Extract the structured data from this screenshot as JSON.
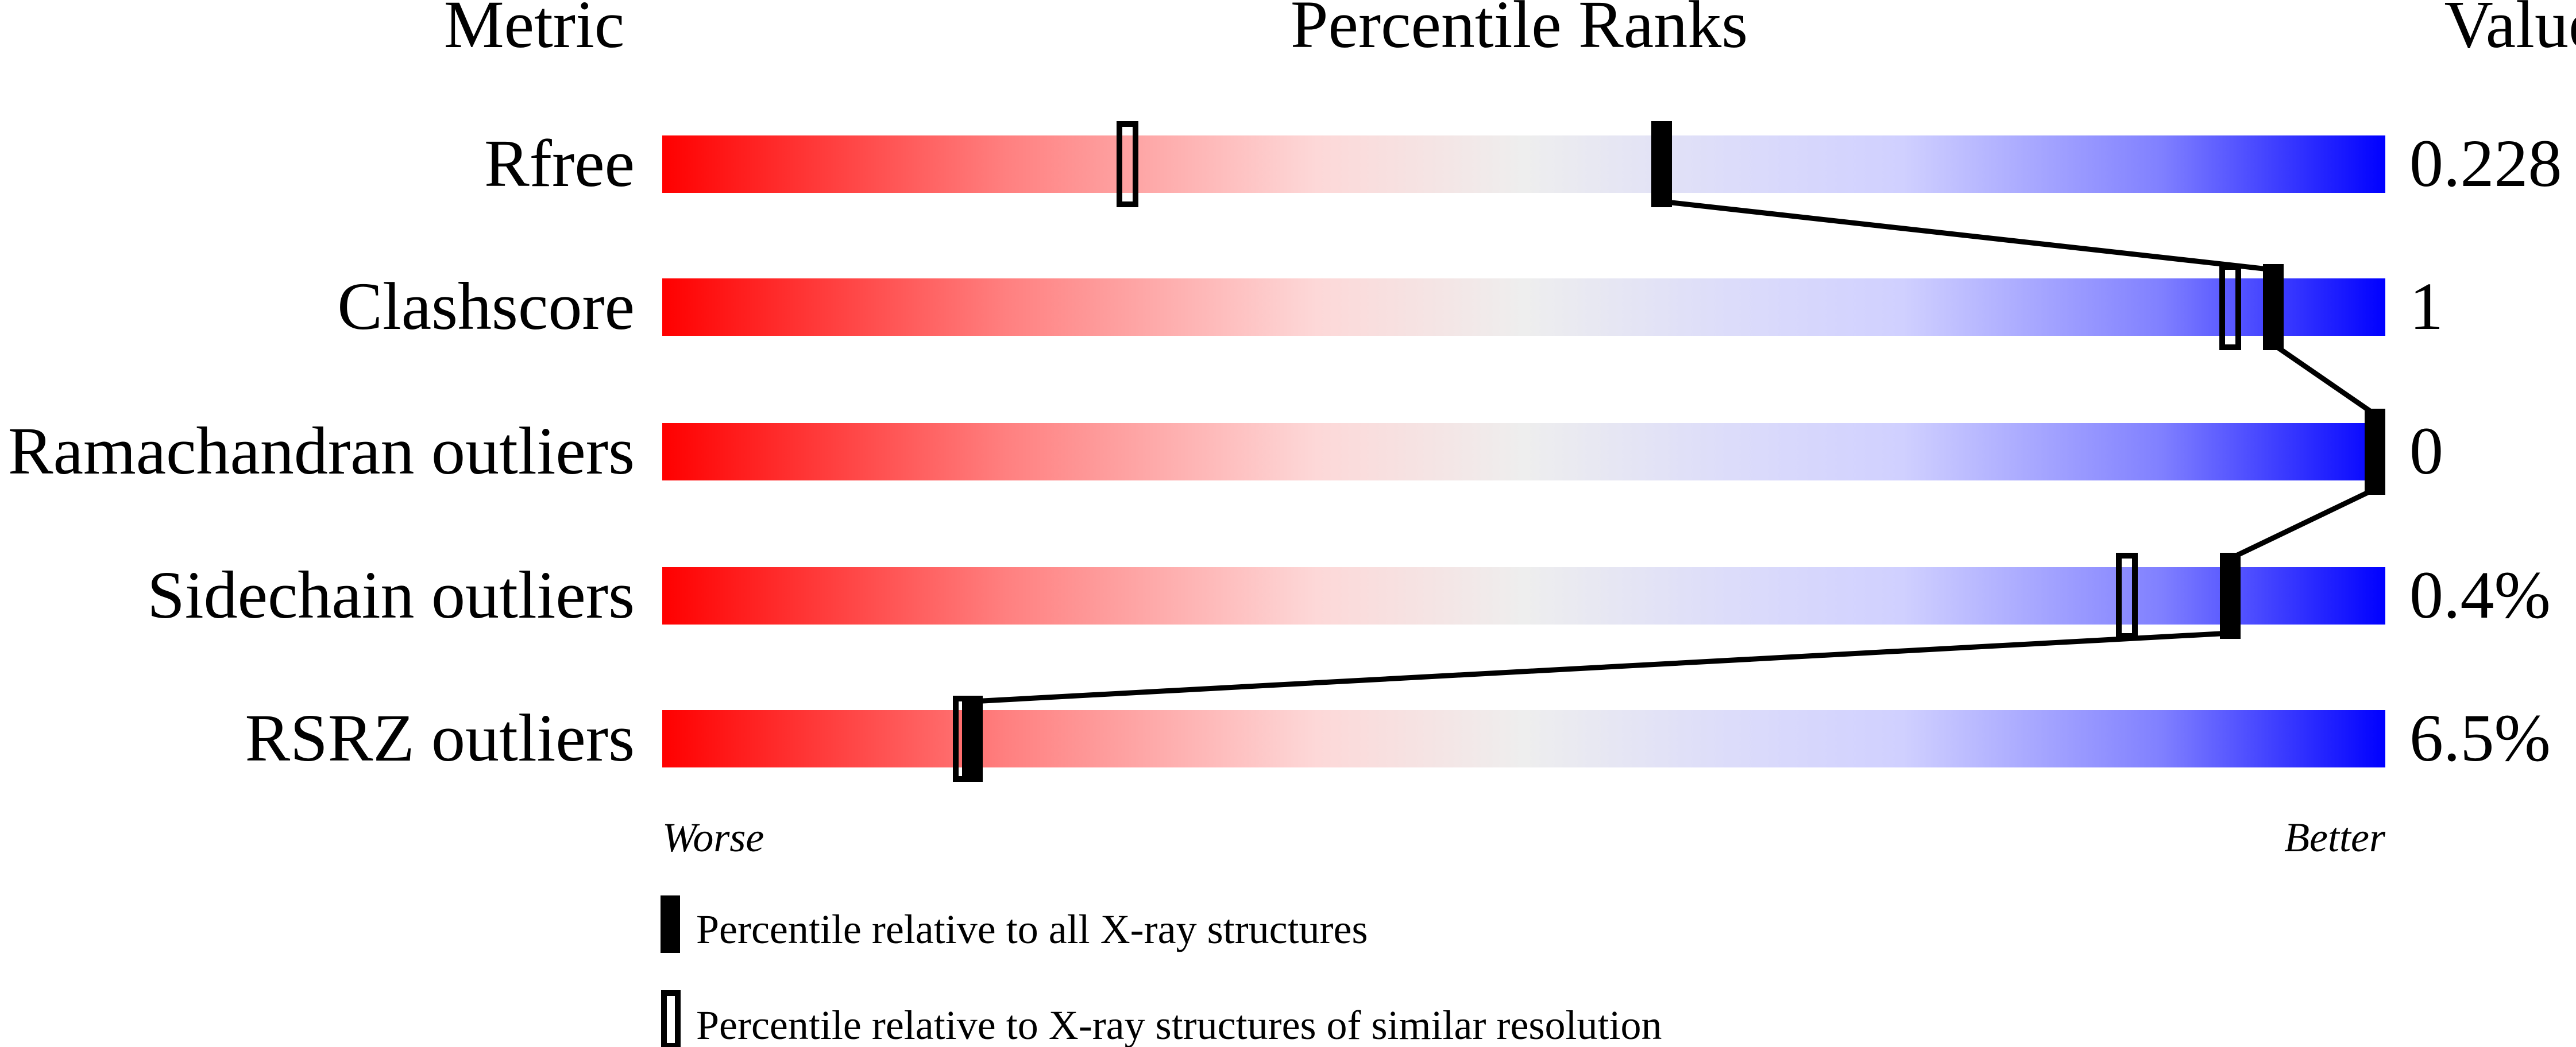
{
  "chart_data": {
    "type": "percentile-bar",
    "headers": {
      "metric": "Metric",
      "ranks": "Percentile Ranks",
      "value": "Value"
    },
    "xlim": [
      0,
      100
    ],
    "axis_labels": {
      "left": "Worse",
      "right": "Better"
    },
    "metrics": [
      {
        "name": "Rfree",
        "value": "0.228",
        "percentile_all": 58,
        "percentile_similar": 27
      },
      {
        "name": "Clashscore",
        "value": "1",
        "percentile_all": 93.5,
        "percentile_similar": 91
      },
      {
        "name": "Ramachandran outliers",
        "value": "0",
        "percentile_all": 100,
        "percentile_similar": null
      },
      {
        "name": "Sidechain outliers",
        "value": "0.4%",
        "percentile_all": 91,
        "percentile_similar": 85
      },
      {
        "name": "RSRZ outliers",
        "value": "6.5%",
        "percentile_all": 18,
        "percentile_similar": 17.5
      }
    ],
    "legend": [
      {
        "marker": "filled",
        "label": "Percentile relative to all X-ray structures"
      },
      {
        "marker": "open",
        "label": "Percentile relative to X-ray structures of similar resolution"
      }
    ],
    "colors": {
      "worse": "#ff0000",
      "middle": "#eeeeee",
      "better": "#0000ff"
    }
  }
}
